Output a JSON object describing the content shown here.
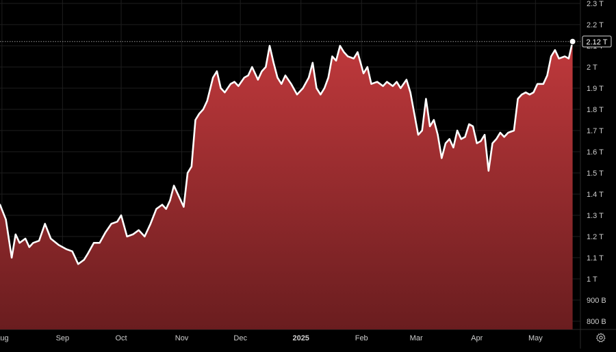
{
  "chart_data": {
    "type": "area",
    "title": "",
    "xlabel": "",
    "ylabel": "",
    "ylim": [
      0.75,
      2.3
    ],
    "y_ticks": [
      {
        "value": 0.8,
        "label": "800 B"
      },
      {
        "value": 0.9,
        "label": "900 B"
      },
      {
        "value": 1.0,
        "label": "1 T"
      },
      {
        "value": 1.1,
        "label": "1.1 T"
      },
      {
        "value": 1.2,
        "label": "1.2 T"
      },
      {
        "value": 1.3,
        "label": "1.3 T"
      },
      {
        "value": 1.4,
        "label": "1.4 T"
      },
      {
        "value": 1.5,
        "label": "1.5 T"
      },
      {
        "value": 1.6,
        "label": "1.6 T"
      },
      {
        "value": 1.7,
        "label": "1.7 T"
      },
      {
        "value": 1.8,
        "label": "1.8 T"
      },
      {
        "value": 1.9,
        "label": "1.9 T"
      },
      {
        "value": 2.0,
        "label": "2 T"
      },
      {
        "value": 2.1,
        "label": "2.1 T"
      },
      {
        "value": 2.2,
        "label": "2.2 T"
      },
      {
        "value": 2.3,
        "label": "2.3 T"
      }
    ],
    "x_ticks": [
      {
        "date": "2024-08-01",
        "label": "Aug",
        "bold": false
      },
      {
        "date": "2024-09-01",
        "label": "Sep",
        "bold": false
      },
      {
        "date": "2024-10-01",
        "label": "Oct",
        "bold": false
      },
      {
        "date": "2024-11-01",
        "label": "Nov",
        "bold": false
      },
      {
        "date": "2024-12-01",
        "label": "Dec",
        "bold": false
      },
      {
        "date": "2025-01-01",
        "label": "2025",
        "bold": true
      },
      {
        "date": "2025-02-01",
        "label": "Feb",
        "bold": false
      },
      {
        "date": "2025-03-01",
        "label": "Mar",
        "bold": false
      },
      {
        "date": "2025-04-01",
        "label": "Apr",
        "bold": false
      },
      {
        "date": "2025-05-01",
        "label": "May",
        "bold": false
      }
    ],
    "x_range": [
      "2024-07-31",
      "2025-05-24"
    ],
    "series": [
      {
        "points": [
          [
            "2024-07-31",
            1.35
          ],
          [
            "2024-08-03",
            1.28
          ],
          [
            "2024-08-06",
            1.1
          ],
          [
            "2024-08-08",
            1.21
          ],
          [
            "2024-08-10",
            1.17
          ],
          [
            "2024-08-13",
            1.19
          ],
          [
            "2024-08-15",
            1.15
          ],
          [
            "2024-08-17",
            1.17
          ],
          [
            "2024-08-20",
            1.18
          ],
          [
            "2024-08-23",
            1.26
          ],
          [
            "2024-08-26",
            1.19
          ],
          [
            "2024-08-30",
            1.16
          ],
          [
            "2024-09-03",
            1.14
          ],
          [
            "2024-09-06",
            1.13
          ],
          [
            "2024-09-09",
            1.07
          ],
          [
            "2024-09-12",
            1.09
          ],
          [
            "2024-09-14",
            1.12
          ],
          [
            "2024-09-17",
            1.17
          ],
          [
            "2024-09-20",
            1.17
          ],
          [
            "2024-09-23",
            1.22
          ],
          [
            "2024-09-26",
            1.26
          ],
          [
            "2024-09-29",
            1.27
          ],
          [
            "2024-10-01",
            1.3
          ],
          [
            "2024-10-04",
            1.2
          ],
          [
            "2024-10-07",
            1.21
          ],
          [
            "2024-10-10",
            1.23
          ],
          [
            "2024-10-13",
            1.2
          ],
          [
            "2024-10-16",
            1.26
          ],
          [
            "2024-10-19",
            1.33
          ],
          [
            "2024-10-22",
            1.35
          ],
          [
            "2024-10-24",
            1.33
          ],
          [
            "2024-10-26",
            1.37
          ],
          [
            "2024-10-28",
            1.44
          ],
          [
            "2024-10-31",
            1.38
          ],
          [
            "2024-11-02",
            1.34
          ],
          [
            "2024-11-04",
            1.5
          ],
          [
            "2024-11-06",
            1.53
          ],
          [
            "2024-11-08",
            1.75
          ],
          [
            "2024-11-10",
            1.78
          ],
          [
            "2024-11-12",
            1.8
          ],
          [
            "2024-11-14",
            1.84
          ],
          [
            "2024-11-17",
            1.95
          ],
          [
            "2024-11-19",
            1.98
          ],
          [
            "2024-11-21",
            1.9
          ],
          [
            "2024-11-23",
            1.88
          ],
          [
            "2024-11-26",
            1.92
          ],
          [
            "2024-11-28",
            1.93
          ],
          [
            "2024-11-30",
            1.91
          ],
          [
            "2024-12-03",
            1.95
          ],
          [
            "2024-12-05",
            1.96
          ],
          [
            "2024-12-07",
            2.0
          ],
          [
            "2024-12-10",
            1.94
          ],
          [
            "2024-12-12",
            1.98
          ],
          [
            "2024-12-14",
            2.0
          ],
          [
            "2024-12-16",
            2.1
          ],
          [
            "2024-12-18",
            2.02
          ],
          [
            "2024-12-20",
            1.95
          ],
          [
            "2024-12-22",
            1.92
          ],
          [
            "2024-12-24",
            1.96
          ],
          [
            "2024-12-27",
            1.92
          ],
          [
            "2024-12-30",
            1.87
          ],
          [
            "2025-01-02",
            1.9
          ],
          [
            "2025-01-05",
            1.95
          ],
          [
            "2025-01-07",
            2.02
          ],
          [
            "2025-01-09",
            1.9
          ],
          [
            "2025-01-11",
            1.87
          ],
          [
            "2025-01-13",
            1.9
          ],
          [
            "2025-01-15",
            1.95
          ],
          [
            "2025-01-17",
            2.05
          ],
          [
            "2025-01-19",
            2.03
          ],
          [
            "2025-01-21",
            2.1
          ],
          [
            "2025-01-23",
            2.07
          ],
          [
            "2025-01-25",
            2.05
          ],
          [
            "2025-01-28",
            2.04
          ],
          [
            "2025-01-30",
            2.07
          ],
          [
            "2025-02-02",
            1.97
          ],
          [
            "2025-02-04",
            2.0
          ],
          [
            "2025-02-06",
            1.92
          ],
          [
            "2025-02-09",
            1.93
          ],
          [
            "2025-02-12",
            1.91
          ],
          [
            "2025-02-14",
            1.93
          ],
          [
            "2025-02-17",
            1.91
          ],
          [
            "2025-02-19",
            1.93
          ],
          [
            "2025-02-21",
            1.9
          ],
          [
            "2025-02-24",
            1.94
          ],
          [
            "2025-02-26",
            1.88
          ],
          [
            "2025-02-28",
            1.78
          ],
          [
            "2025-03-02",
            1.68
          ],
          [
            "2025-03-04",
            1.7
          ],
          [
            "2025-03-06",
            1.85
          ],
          [
            "2025-03-08",
            1.72
          ],
          [
            "2025-03-10",
            1.75
          ],
          [
            "2025-03-12",
            1.68
          ],
          [
            "2025-03-14",
            1.57
          ],
          [
            "2025-03-16",
            1.64
          ],
          [
            "2025-03-18",
            1.66
          ],
          [
            "2025-03-20",
            1.62
          ],
          [
            "2025-03-22",
            1.7
          ],
          [
            "2025-03-24",
            1.66
          ],
          [
            "2025-03-26",
            1.67
          ],
          [
            "2025-03-28",
            1.73
          ],
          [
            "2025-03-30",
            1.72
          ],
          [
            "2025-04-01",
            1.64
          ],
          [
            "2025-04-03",
            1.65
          ],
          [
            "2025-04-05",
            1.68
          ],
          [
            "2025-04-07",
            1.51
          ],
          [
            "2025-04-09",
            1.64
          ],
          [
            "2025-04-11",
            1.66
          ],
          [
            "2025-04-13",
            1.69
          ],
          [
            "2025-04-15",
            1.67
          ],
          [
            "2025-04-17",
            1.69
          ],
          [
            "2025-04-20",
            1.7
          ],
          [
            "2025-04-22",
            1.85
          ],
          [
            "2025-04-24",
            1.87
          ],
          [
            "2025-04-26",
            1.88
          ],
          [
            "2025-04-28",
            1.87
          ],
          [
            "2025-04-30",
            1.88
          ],
          [
            "2025-05-02",
            1.92
          ],
          [
            "2025-05-05",
            1.92
          ],
          [
            "2025-05-07",
            1.96
          ],
          [
            "2025-05-09",
            2.05
          ],
          [
            "2025-05-11",
            2.08
          ],
          [
            "2025-05-13",
            2.04
          ],
          [
            "2025-05-16",
            2.05
          ],
          [
            "2025-05-18",
            2.04
          ],
          [
            "2025-05-20",
            2.12
          ]
        ]
      }
    ],
    "last_value_label": "2.12 T",
    "grid": true
  },
  "colors": {
    "background": "#000000",
    "line": "#ffffff",
    "fill_top": "#c0393c",
    "fill_bottom": "#6a1d1f",
    "grid": "#1e1e1e",
    "axis_text": "#cfcfcf"
  },
  "icons": {
    "settings": "gear-icon"
  }
}
